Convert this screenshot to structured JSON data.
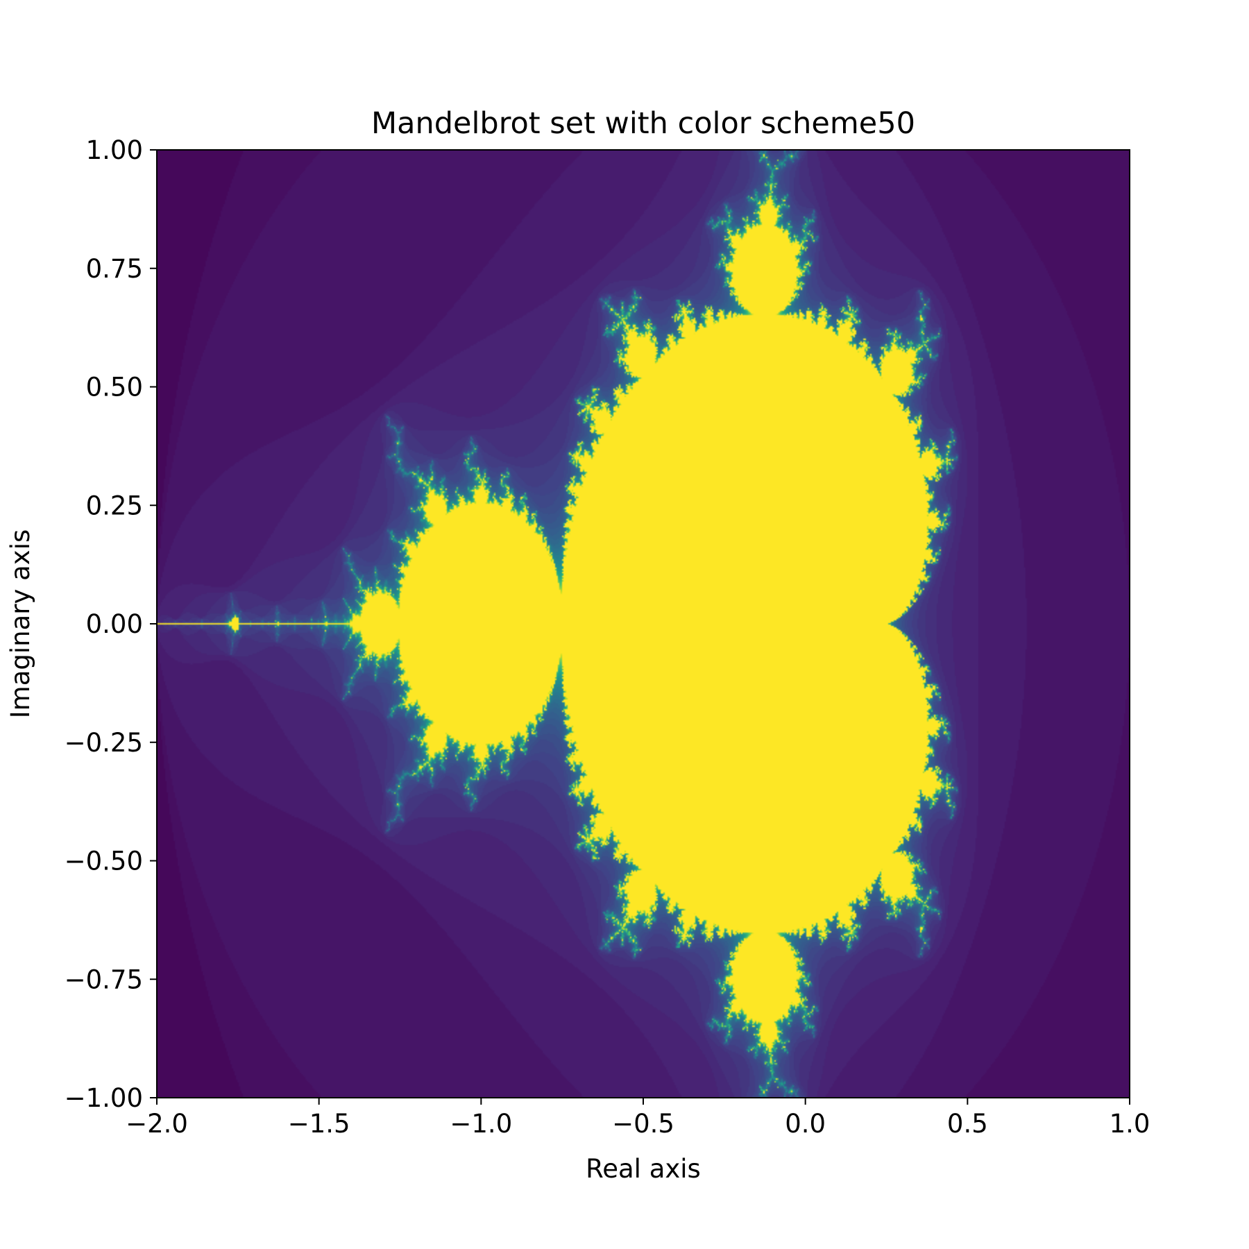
{
  "chart_data": {
    "type": "heatmap",
    "title": "Mandelbrot set with color scheme50",
    "xlabel": "Real axis",
    "ylabel": "Imaginary axis",
    "xlim": [
      -2.0,
      1.0
    ],
    "ylim": [
      -1.0,
      1.0
    ],
    "x_ticks": [
      -2.0,
      -1.5,
      -1.0,
      -0.5,
      0.0,
      0.5,
      1.0
    ],
    "x_tick_labels": [
      "−2.0",
      "−1.5",
      "−1.0",
      "−0.5",
      "0.0",
      "0.5",
      "1.0"
    ],
    "y_ticks": [
      1.0,
      0.75,
      0.5,
      0.25,
      0.0,
      -0.25,
      -0.5,
      -0.75,
      -1.0
    ],
    "y_tick_labels": [
      "1.00",
      "0.75",
      "0.50",
      "0.25",
      "0.00",
      "−0.25",
      "−0.50",
      "−0.75",
      "−1.00"
    ],
    "max_iterations": 50,
    "colormap": "viridis",
    "grid": false,
    "colors": {
      "background_low": "#440154",
      "boundary": "#21918c",
      "set_interior": "#fde725",
      "axes": "#000000"
    }
  }
}
